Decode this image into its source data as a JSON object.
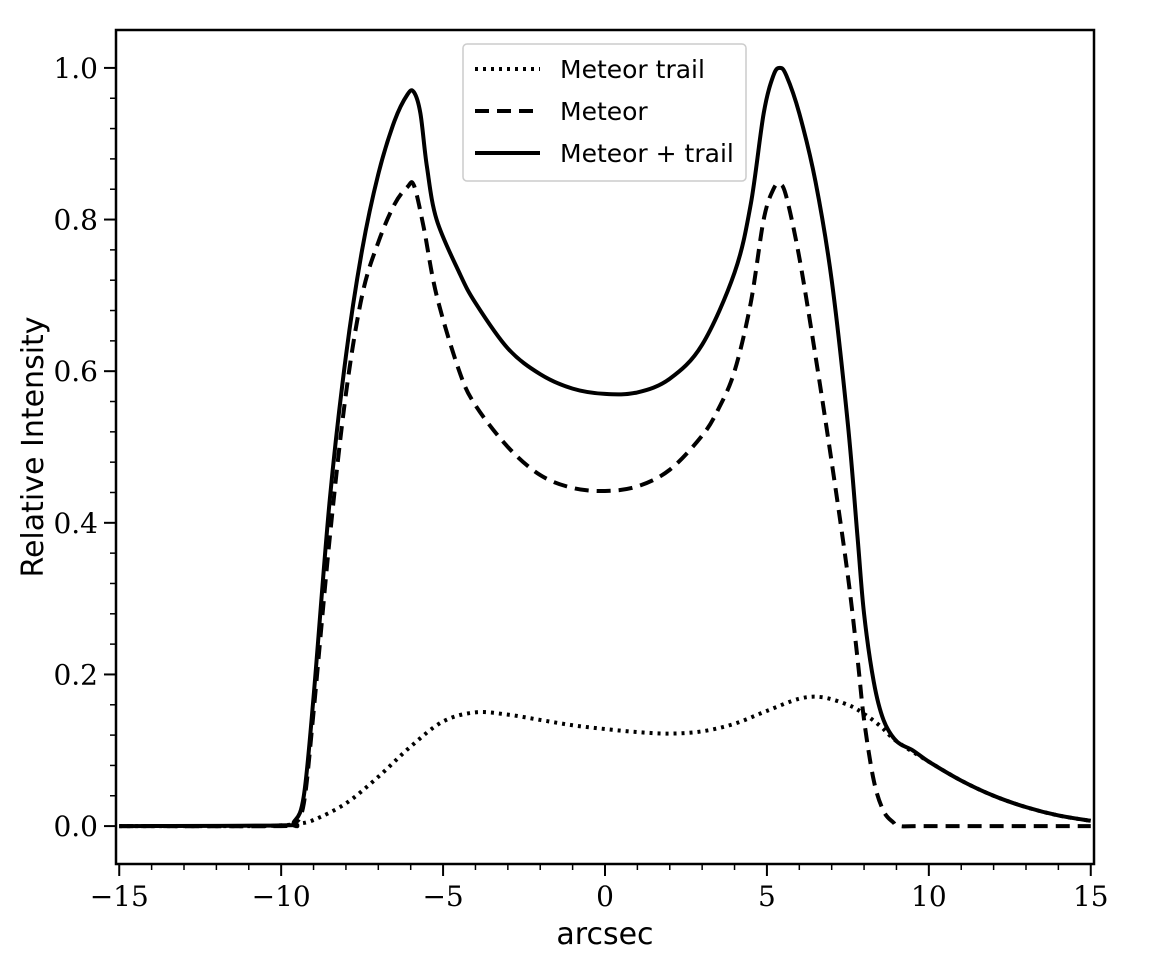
{
  "chart_data": {
    "type": "line",
    "xlabel": "arcsec",
    "ylabel": "Relative Intensity",
    "xlim": [
      -15.1,
      15.1
    ],
    "ylim": [
      -0.05,
      1.05
    ],
    "grid": false,
    "legend_position": "top-center",
    "x_ticks": [
      {
        "value": -15,
        "label": "−15"
      },
      {
        "value": -10,
        "label": "−10"
      },
      {
        "value": -5,
        "label": "−5"
      },
      {
        "value": 0,
        "label": "0"
      },
      {
        "value": 5,
        "label": "5"
      },
      {
        "value": 10,
        "label": "10"
      },
      {
        "value": 15,
        "label": "15"
      }
    ],
    "y_ticks": [
      {
        "value": 0.0,
        "label": "0.0"
      },
      {
        "value": 0.2,
        "label": "0.2"
      },
      {
        "value": 0.4,
        "label": "0.4"
      },
      {
        "value": 0.6,
        "label": "0.6"
      },
      {
        "value": 0.8,
        "label": "0.8"
      },
      {
        "value": 1.0,
        "label": "1.0"
      }
    ],
    "series": [
      {
        "name": "Meteor trail",
        "style": "dotted",
        "color": "#000000",
        "x": [
          -15,
          -11,
          -10,
          -9.5,
          -9,
          -8,
          -7,
          -6,
          -5,
          -4,
          -3,
          -2,
          -1,
          0,
          1,
          2,
          3,
          4,
          5,
          6,
          6.7,
          7.5,
          8,
          8.5,
          9,
          10,
          11,
          12,
          13,
          14,
          15
        ],
        "y": [
          0,
          0,
          0.001,
          0.003,
          0.008,
          0.03,
          0.065,
          0.105,
          0.138,
          0.15,
          0.147,
          0.14,
          0.133,
          0.128,
          0.124,
          0.122,
          0.125,
          0.135,
          0.152,
          0.168,
          0.17,
          0.16,
          0.148,
          0.132,
          0.112,
          0.085,
          0.06,
          0.04,
          0.025,
          0.014,
          0.007
        ]
      },
      {
        "name": "Meteor",
        "style": "dashed",
        "color": "#000000",
        "x": [
          -15,
          -10,
          -9.6,
          -9.3,
          -9.0,
          -8.5,
          -8.0,
          -7.5,
          -7.0,
          -6.5,
          -6.1,
          -5.9,
          -5.6,
          -5.2,
          -4.5,
          -4.0,
          -3.0,
          -2.0,
          -1.0,
          0,
          1,
          2,
          3,
          3.5,
          4.0,
          4.5,
          4.9,
          5.2,
          5.4,
          5.6,
          6.0,
          6.5,
          7.0,
          7.5,
          7.8,
          8.0,
          8.3,
          8.6,
          8.9,
          9.1,
          10,
          15
        ],
        "y": [
          0,
          0,
          0.003,
          0.03,
          0.15,
          0.38,
          0.57,
          0.7,
          0.77,
          0.82,
          0.843,
          0.845,
          0.79,
          0.7,
          0.6,
          0.555,
          0.5,
          0.463,
          0.446,
          0.442,
          0.448,
          0.47,
          0.515,
          0.55,
          0.6,
          0.69,
          0.8,
          0.84,
          0.847,
          0.83,
          0.75,
          0.62,
          0.48,
          0.33,
          0.22,
          0.14,
          0.06,
          0.02,
          0.005,
          0,
          0,
          0
        ]
      },
      {
        "name": "Meteor + trail",
        "style": "solid",
        "color": "#000000",
        "x": [
          -15,
          -10,
          -9.6,
          -9.3,
          -9.0,
          -8.5,
          -8.0,
          -7.5,
          -7.0,
          -6.5,
          -6.1,
          -5.9,
          -5.7,
          -5.5,
          -5.2,
          -4.5,
          -4.0,
          -3.0,
          -2.0,
          -1.0,
          0,
          1,
          2,
          3,
          4.0,
          4.5,
          4.9,
          5.2,
          5.4,
          5.6,
          6.0,
          6.5,
          7.0,
          7.5,
          7.8,
          8.0,
          8.3,
          8.6,
          9.0,
          9.5,
          10,
          11,
          12,
          13,
          14,
          15
        ],
        "y": [
          0,
          0.001,
          0.006,
          0.04,
          0.17,
          0.43,
          0.62,
          0.76,
          0.86,
          0.93,
          0.965,
          0.968,
          0.94,
          0.87,
          0.8,
          0.73,
          0.69,
          0.63,
          0.596,
          0.577,
          0.57,
          0.572,
          0.59,
          0.635,
          0.73,
          0.82,
          0.94,
          0.99,
          1.0,
          0.99,
          0.94,
          0.85,
          0.72,
          0.53,
          0.38,
          0.28,
          0.19,
          0.14,
          0.112,
          0.1,
          0.085,
          0.06,
          0.04,
          0.025,
          0.014,
          0.007
        ]
      }
    ]
  }
}
